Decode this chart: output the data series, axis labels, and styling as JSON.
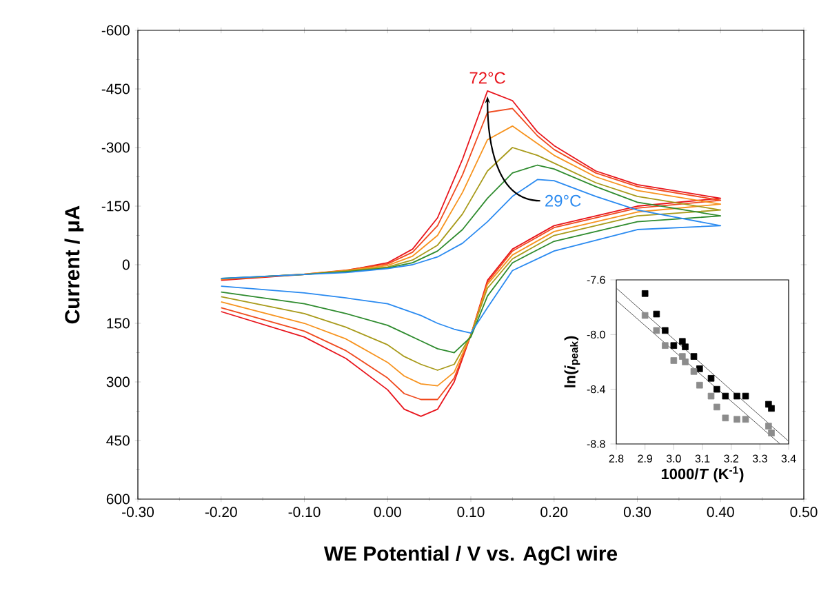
{
  "chart_data": [
    {
      "type": "line",
      "xlabel": "WE Potential / V vs. AgCl wire",
      "ylabel": "Current / μA",
      "xlim": [
        -0.3,
        0.5
      ],
      "ylim": [
        600,
        -600
      ],
      "xticks": [
        {
          "value": -0.3,
          "label": "-0.30"
        },
        {
          "value": -0.2,
          "label": "-0.20"
        },
        {
          "value": -0.1,
          "label": "-0.10"
        },
        {
          "value": 0,
          "label": "0.00"
        },
        {
          "value": 0.1,
          "label": "0.10"
        },
        {
          "value": 0.2,
          "label": "0.20"
        },
        {
          "value": 0.3,
          "label": "0.30"
        },
        {
          "value": 0.4,
          "label": "0.40"
        },
        {
          "value": 0.5,
          "label": "0.50"
        }
      ],
      "yticks": [
        -600,
        -450,
        -300,
        -150,
        0,
        150,
        300,
        450,
        600
      ],
      "series": [
        {
          "color": "#e8141c",
          "x": [
            -0.2,
            -0.1,
            -0.05,
            0,
            0.03,
            0.06,
            0.09,
            0.12,
            0.15,
            0.18,
            0.2,
            0.25,
            0.3,
            0.4,
            0.3,
            0.2,
            0.15,
            0.12,
            0.1,
            0.08,
            0.06,
            0.04,
            0.02,
            0,
            -0.05,
            -0.1,
            -0.2
          ],
          "values": [
            40,
            25,
            15,
            -5,
            -40,
            -120,
            -270,
            -445,
            -420,
            -340,
            -305,
            -240,
            -205,
            -170,
            -150,
            -100,
            -40,
            40,
            180,
            300,
            370,
            388,
            370,
            320,
            240,
            185,
            120
          ]
        },
        {
          "color": "#f04a1e",
          "x": [
            -0.2,
            -0.1,
            -0.05,
            0,
            0.03,
            0.06,
            0.09,
            0.12,
            0.15,
            0.18,
            0.2,
            0.25,
            0.3,
            0.4,
            0.3,
            0.2,
            0.15,
            0.12,
            0.1,
            0.08,
            0.06,
            0.04,
            0.02,
            0,
            -0.05,
            -0.1,
            -0.2
          ],
          "values": [
            38,
            24,
            14,
            -2,
            -32,
            -100,
            -230,
            -390,
            -400,
            -330,
            -295,
            -235,
            -200,
            -165,
            -145,
            -95,
            -35,
            45,
            180,
            290,
            345,
            345,
            330,
            290,
            220,
            170,
            110
          ]
        },
        {
          "color": "#f7931e",
          "x": [
            -0.2,
            -0.1,
            -0.05,
            0,
            0.03,
            0.06,
            0.09,
            0.12,
            0.15,
            0.18,
            0.2,
            0.25,
            0.3,
            0.4,
            0.3,
            0.2,
            0.15,
            0.12,
            0.1,
            0.08,
            0.06,
            0.04,
            0.02,
            0,
            -0.05,
            -0.1,
            -0.2
          ],
          "values": [
            37,
            24,
            15,
            2,
            -22,
            -75,
            -185,
            -320,
            -355,
            -310,
            -280,
            -225,
            -190,
            -155,
            -135,
            -85,
            -25,
            50,
            180,
            275,
            310,
            305,
            285,
            250,
            190,
            150,
            95
          ]
        },
        {
          "color": "#a89a1a",
          "x": [
            -0.2,
            -0.1,
            -0.05,
            0,
            0.03,
            0.06,
            0.09,
            0.12,
            0.15,
            0.18,
            0.2,
            0.25,
            0.3,
            0.4,
            0.3,
            0.2,
            0.15,
            0.12,
            0.1,
            0.08,
            0.06,
            0.04,
            0.02,
            0,
            -0.05,
            -0.1,
            -0.2
          ],
          "values": [
            36,
            25,
            16,
            6,
            -12,
            -50,
            -130,
            -240,
            -300,
            -280,
            -260,
            -210,
            -175,
            -140,
            -125,
            -75,
            -15,
            60,
            180,
            255,
            270,
            255,
            235,
            205,
            160,
            125,
            82
          ]
        },
        {
          "color": "#2e8b2e",
          "x": [
            -0.2,
            -0.1,
            -0.05,
            0,
            0.03,
            0.06,
            0.09,
            0.12,
            0.15,
            0.18,
            0.2,
            0.25,
            0.3,
            0.4,
            0.3,
            0.2,
            0.15,
            0.12,
            0.1,
            0.08,
            0.06,
            0.04,
            0.02,
            0,
            -0.05,
            -0.1,
            -0.2
          ],
          "values": [
            35,
            25,
            18,
            8,
            -5,
            -35,
            -90,
            -170,
            -235,
            -255,
            -245,
            -200,
            -160,
            -125,
            -110,
            -60,
            -5,
            80,
            185,
            225,
            215,
            195,
            175,
            155,
            125,
            100,
            70
          ]
        },
        {
          "color": "#2a8af0",
          "x": [
            -0.2,
            -0.1,
            -0.05,
            0,
            0.03,
            0.06,
            0.09,
            0.12,
            0.15,
            0.18,
            0.2,
            0.25,
            0.3,
            0.4,
            0.3,
            0.2,
            0.15,
            0.12,
            0.1,
            0.08,
            0.06,
            0.04,
            0.02,
            0,
            -0.05,
            -0.1,
            -0.2
          ],
          "values": [
            35,
            25,
            20,
            10,
            0,
            -20,
            -55,
            -110,
            -175,
            -218,
            -215,
            -175,
            -140,
            -100,
            -90,
            -35,
            15,
            110,
            175,
            165,
            150,
            130,
            115,
            100,
            85,
            72,
            55
          ]
        }
      ],
      "annotations": [
        {
          "text": "72°C",
          "x": 0.12,
          "y": -445
        },
        {
          "text": "29°C",
          "x": 0.18,
          "y": -218
        }
      ]
    },
    {
      "type": "scatter",
      "xlabel": "1000/*T* (K$^{-1}$)",
      "ylabel": "ln(*i*$_{peak}$)",
      "xlim": [
        2.8,
        3.4
      ],
      "ylim": [
        -8.8,
        -7.6
      ],
      "xticks": [
        2.8,
        2.9,
        {
          "value": 3.0,
          "label": "3.0"
        },
        3.1,
        3.2,
        3.3,
        3.4
      ],
      "yticks": [
        -7.6,
        {
          "value": -8.0,
          "label": "-8.0"
        },
        -8.4,
        -8.8
      ],
      "marker": "square",
      "series": [
        {
          "color": "#000000",
          "x": [
            2.9,
            2.94,
            2.97,
            3.0,
            3.03,
            3.04,
            3.07,
            3.09,
            3.13,
            3.15,
            3.18,
            3.22,
            3.25,
            3.33,
            3.34
          ],
          "values": [
            -7.7,
            -7.85,
            -7.97,
            -8.08,
            -8.05,
            -8.09,
            -8.16,
            -8.25,
            -8.32,
            -8.4,
            -8.45,
            -8.45,
            -8.45,
            -8.51,
            -8.54
          ]
        },
        {
          "color": "#8c8c8c",
          "x": [
            2.9,
            2.94,
            2.97,
            3.0,
            3.03,
            3.04,
            3.07,
            3.09,
            3.13,
            3.15,
            3.18,
            3.22,
            3.25,
            3.33,
            3.34
          ],
          "values": [
            -7.86,
            -7.97,
            -8.08,
            -8.19,
            -8.16,
            -8.2,
            -8.27,
            -8.37,
            -8.45,
            -8.53,
            -8.61,
            -8.62,
            -8.62,
            -8.67,
            -8.72
          ]
        },
        {
          "type": "line",
          "marker": "none",
          "color": "#555555",
          "x": [
            2.8,
            3.4
          ],
          "values": [
            -7.66,
            -8.78
          ]
        },
        {
          "type": "line",
          "marker": "none",
          "color": "#555555",
          "x": [
            2.8,
            3.37
          ],
          "values": [
            -7.75,
            -8.8
          ]
        }
      ]
    }
  ]
}
